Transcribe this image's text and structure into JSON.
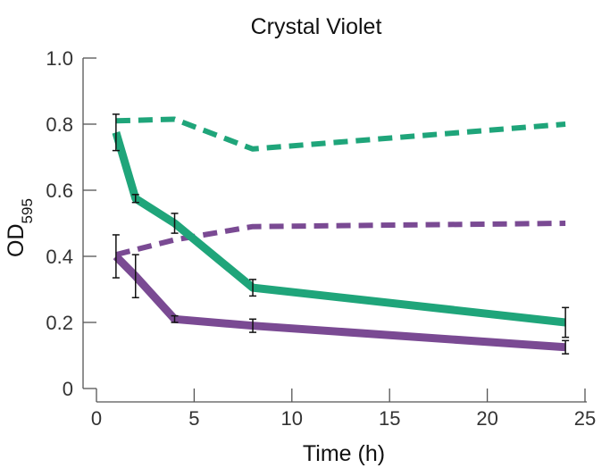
{
  "chart_data": {
    "type": "line",
    "title": "Crystal Violet",
    "xlabel": "Time (h)",
    "ylabel": {
      "main": "OD",
      "subscript": "595"
    },
    "xlim": [
      0,
      25
    ],
    "ylim": [
      0,
      1.0
    ],
    "xticks": [
      0,
      5,
      10,
      15,
      20,
      25
    ],
    "yticks": [
      0,
      0.2,
      0.4,
      0.6,
      0.8,
      1.0
    ],
    "xtick_labels": [
      "0",
      "5",
      "10",
      "15",
      "20",
      "25"
    ],
    "ytick_labels": [
      "0",
      "0.2",
      "0.4",
      "0.6",
      "0.8",
      "1.0"
    ],
    "grid": false,
    "series": [
      {
        "color": "#1fa57a",
        "line_style": "solid",
        "x": [
          1,
          2,
          4,
          8,
          24
        ],
        "y": [
          0.775,
          0.575,
          0.5,
          0.305,
          0.2
        ],
        "error": [
          0.055,
          0.012,
          0.03,
          0.025,
          0.045
        ]
      },
      {
        "color": "#7a4a93",
        "line_style": "solid",
        "x": [
          1,
          2,
          4,
          8,
          24
        ],
        "y": [
          0.4,
          0.34,
          0.21,
          0.19,
          0.125
        ],
        "error": [
          0.065,
          0.065,
          0.01,
          0.02,
          0.02
        ]
      },
      {
        "color": "#1fa57a",
        "line_style": "dashed",
        "x": [
          1,
          4,
          8,
          24
        ],
        "y": [
          0.81,
          0.815,
          0.725,
          0.8
        ]
      },
      {
        "color": "#7a4a93",
        "line_style": "dashed",
        "x": [
          1,
          4,
          8,
          24
        ],
        "y": [
          0.405,
          0.45,
          0.49,
          0.5
        ]
      }
    ]
  }
}
